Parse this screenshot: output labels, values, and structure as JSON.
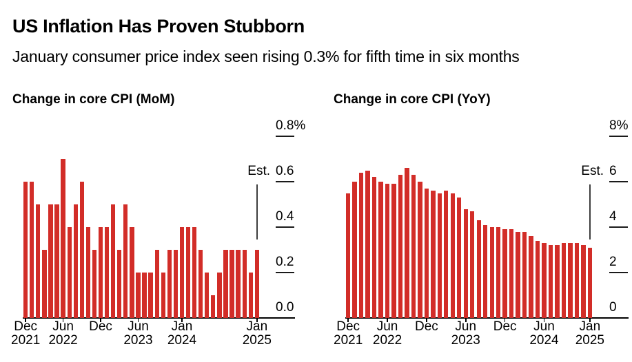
{
  "header": {
    "title": "US Inflation Has Proven Stubborn",
    "subtitle": "January consumer price index seen rising 0.3% for fifth time in six months"
  },
  "colors": {
    "bar": "#d22d28",
    "text": "#000000",
    "axis": "#000000",
    "estimate_line": "#3d3d3d"
  },
  "chart_data": [
    {
      "type": "bar",
      "title": "Change in core CPI (MoM)",
      "unit": "%",
      "ylim": [
        0,
        0.8
      ],
      "grid": false,
      "legend": "none",
      "y_axis_side": "right",
      "est_label": "Est.",
      "est_index": 37,
      "categories": [
        "Dec 2021",
        "Jan 2022",
        "Feb 2022",
        "Mar 2022",
        "Apr 2022",
        "May 2022",
        "Jun 2022",
        "Jul 2022",
        "Aug 2022",
        "Sep 2022",
        "Oct 2022",
        "Nov 2022",
        "Dec 2022",
        "Jan 2023",
        "Feb 2023",
        "Mar 2023",
        "Apr 2023",
        "May 2023",
        "Jun 2023",
        "Jul 2023",
        "Aug 2023",
        "Sep 2023",
        "Oct 2023",
        "Nov 2023",
        "Dec 2023",
        "Jan 2024",
        "Feb 2024",
        "Mar 2024",
        "Apr 2024",
        "May 2024",
        "Jun 2024",
        "Jul 2024",
        "Aug 2024",
        "Sep 2024",
        "Oct 2024",
        "Nov 2024",
        "Dec 2024",
        "Jan 2025"
      ],
      "values": [
        0.6,
        0.6,
        0.5,
        0.3,
        0.5,
        0.5,
        0.7,
        0.4,
        0.5,
        0.6,
        0.4,
        0.3,
        0.4,
        0.4,
        0.5,
        0.3,
        0.5,
        0.4,
        0.2,
        0.2,
        0.2,
        0.3,
        0.2,
        0.3,
        0.3,
        0.4,
        0.4,
        0.4,
        0.3,
        0.2,
        0.1,
        0.2,
        0.3,
        0.3,
        0.3,
        0.3,
        0.2,
        0.3
      ],
      "y_ticks": [
        {
          "label": "0.8%",
          "value": 0.8
        },
        {
          "label": "0.6",
          "value": 0.6
        },
        {
          "label": "0.4",
          "value": 0.4
        },
        {
          "label": "0.2",
          "value": 0.2
        },
        {
          "label": "0.0",
          "value": 0
        }
      ],
      "x_ticks": [
        {
          "index": 0,
          "line1": "Dec",
          "line2": "2021"
        },
        {
          "index": 6,
          "line1": "Jun",
          "line2": "2022"
        },
        {
          "index": 12,
          "line1": "Dec",
          "line2": ""
        },
        {
          "index": 18,
          "line1": "Jun",
          "line2": "2023"
        },
        {
          "index": 25,
          "line1": "Jan",
          "line2": "2024"
        },
        {
          "index": 37,
          "line1": "Jan",
          "line2": "2025"
        }
      ]
    },
    {
      "type": "bar",
      "title": "Change in core CPI (YoY)",
      "unit": "%",
      "ylim": [
        0,
        8
      ],
      "grid": false,
      "legend": "none",
      "y_axis_side": "right",
      "est_label": "Est.",
      "est_index": 37,
      "categories": [
        "Dec 2021",
        "Jan 2022",
        "Feb 2022",
        "Mar 2022",
        "Apr 2022",
        "May 2022",
        "Jun 2022",
        "Jul 2022",
        "Aug 2022",
        "Sep 2022",
        "Oct 2022",
        "Nov 2022",
        "Dec 2022",
        "Jan 2023",
        "Feb 2023",
        "Mar 2023",
        "Apr 2023",
        "May 2023",
        "Jun 2023",
        "Jul 2023",
        "Aug 2023",
        "Sep 2023",
        "Oct 2023",
        "Nov 2023",
        "Dec 2023",
        "Jan 2024",
        "Feb 2024",
        "Mar 2024",
        "Apr 2024",
        "May 2024",
        "Jun 2024",
        "Jul 2024",
        "Aug 2024",
        "Sep 2024",
        "Oct 2024",
        "Nov 2024",
        "Dec 2024",
        "Jan 2025"
      ],
      "values": [
        5.5,
        6.0,
        6.4,
        6.5,
        6.2,
        6.0,
        5.9,
        5.9,
        6.3,
        6.6,
        6.3,
        6.0,
        5.7,
        5.6,
        5.5,
        5.6,
        5.5,
        5.3,
        4.8,
        4.7,
        4.3,
        4.1,
        4.0,
        4.0,
        3.9,
        3.9,
        3.8,
        3.8,
        3.6,
        3.4,
        3.3,
        3.2,
        3.2,
        3.3,
        3.3,
        3.3,
        3.2,
        3.1
      ],
      "y_ticks": [
        {
          "label": "8%",
          "value": 8
        },
        {
          "label": "6",
          "value": 6
        },
        {
          "label": "4",
          "value": 4
        },
        {
          "label": "2",
          "value": 2
        },
        {
          "label": "0",
          "value": 0
        }
      ],
      "x_ticks": [
        {
          "index": 0,
          "line1": "Dec",
          "line2": "2021"
        },
        {
          "index": 6,
          "line1": "Jun",
          "line2": "2022"
        },
        {
          "index": 12,
          "line1": "Dec",
          "line2": ""
        },
        {
          "index": 18,
          "line1": "Jun",
          "line2": "2023"
        },
        {
          "index": 24,
          "line1": "Dec",
          "line2": ""
        },
        {
          "index": 30,
          "line1": "Jun",
          "line2": "2024"
        },
        {
          "index": 37,
          "line1": "Jan",
          "line2": "2025"
        }
      ]
    }
  ]
}
